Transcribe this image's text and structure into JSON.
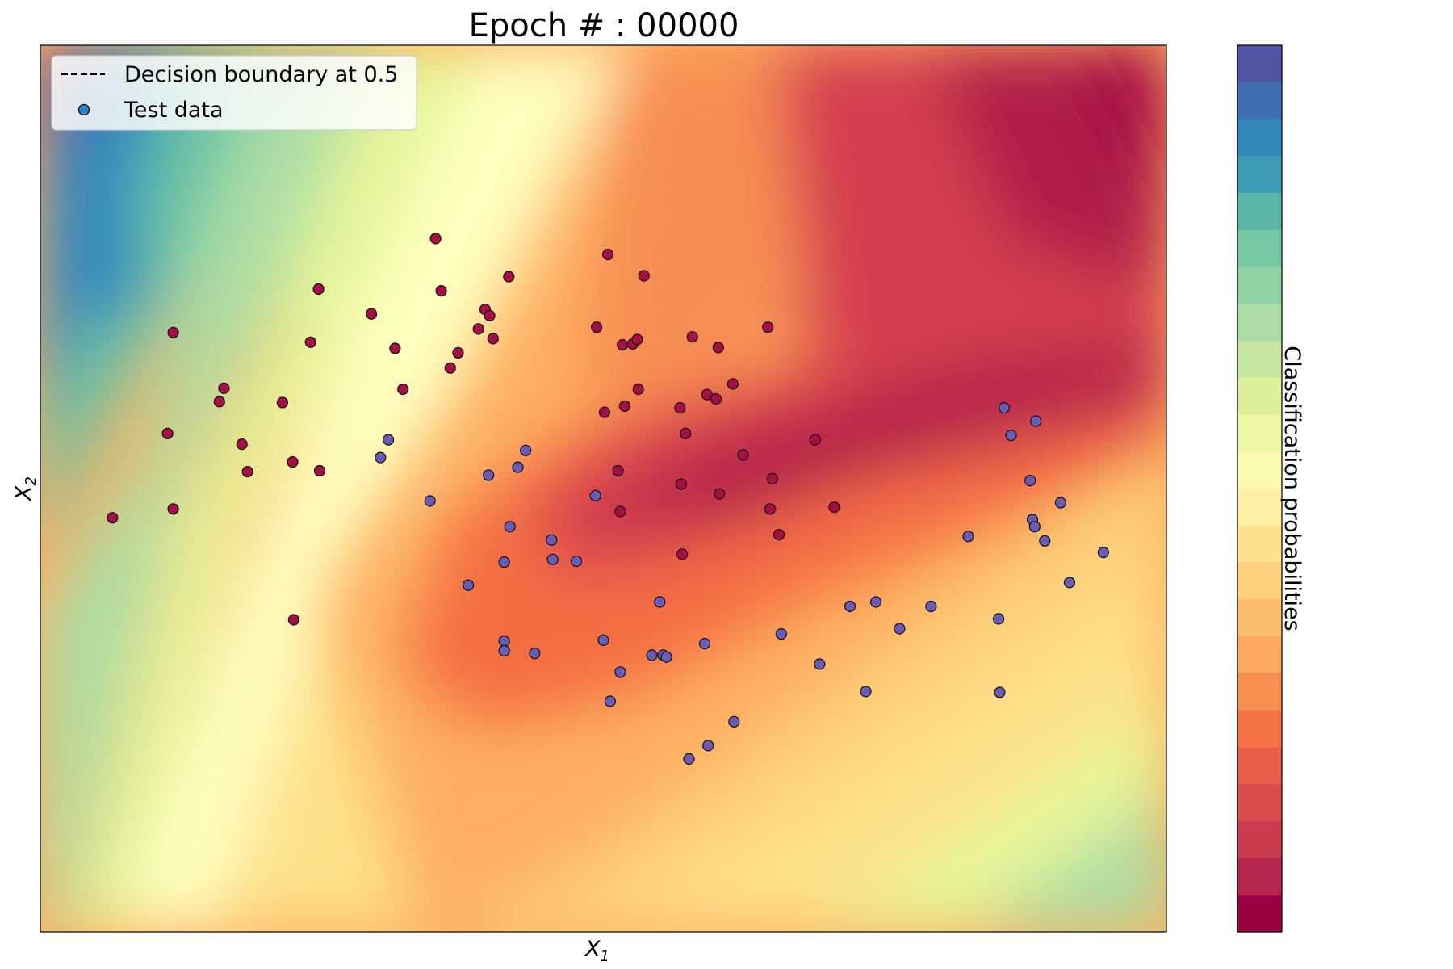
{
  "chart_data": {
    "type": "scatter",
    "title": "Epoch # : 00000",
    "xlabel": {
      "base": "X",
      "sub": "1"
    },
    "ylabel": {
      "base": "X",
      "sub": "2"
    },
    "xlim": [
      0,
      1
    ],
    "ylim": [
      0,
      1
    ],
    "xticks": [],
    "yticks": [],
    "grid": false,
    "legend": {
      "placement": "top-left",
      "entries": [
        {
          "label": "Decision boundary at 0.5",
          "marker": "dashed-line",
          "color": "#000000"
        },
        {
          "label": "Test data",
          "marker": "circle",
          "color": "#2e86c1"
        }
      ]
    },
    "colorbar": {
      "label": "Classification probabilities",
      "colors_top_to_bottom": [
        "#5153a3",
        "#3f6fb3",
        "#3288bd",
        "#3f9bb3",
        "#5bb6a9",
        "#74c9a4",
        "#8fd2a4",
        "#aadca3",
        "#c6e79f",
        "#dcf099",
        "#eef7a3",
        "#fbf8b0",
        "#feefa4",
        "#fee18f",
        "#fed07e",
        "#fdbc6d",
        "#fca85e",
        "#f98e52",
        "#f47245",
        "#eb5c47",
        "#db4b4d",
        "#cc3a4f",
        "#b7264c",
        "#9e0142"
      ]
    },
    "contour": {
      "cmap": "Spectral",
      "description_colors": {
        "low": "#5e4fa2",
        "mid": "#ffffbf",
        "high": "#9e0142"
      }
    },
    "series": [
      {
        "class": "red",
        "color": "#a50f45",
        "points": [
          [
            0.064,
            0.467
          ],
          [
            0.118,
            0.477
          ],
          [
            0.118,
            0.676
          ],
          [
            0.113,
            0.562
          ],
          [
            0.159,
            0.598
          ],
          [
            0.163,
            0.613
          ],
          [
            0.179,
            0.55
          ],
          [
            0.184,
            0.519
          ],
          [
            0.215,
            0.597
          ],
          [
            0.225,
            0.352
          ],
          [
            0.224,
            0.53
          ],
          [
            0.24,
            0.665
          ],
          [
            0.247,
            0.725
          ],
          [
            0.248,
            0.52
          ],
          [
            0.294,
            0.697
          ],
          [
            0.315,
            0.658
          ],
          [
            0.322,
            0.612
          ],
          [
            0.351,
            0.782
          ],
          [
            0.356,
            0.723
          ],
          [
            0.364,
            0.636
          ],
          [
            0.371,
            0.653
          ],
          [
            0.395,
            0.702
          ],
          [
            0.389,
            0.68
          ],
          [
            0.399,
            0.695
          ],
          [
            0.402,
            0.669
          ],
          [
            0.416,
            0.739
          ],
          [
            0.494,
            0.682
          ],
          [
            0.501,
            0.586
          ],
          [
            0.504,
            0.764
          ],
          [
            0.513,
            0.52
          ],
          [
            0.517,
            0.662
          ],
          [
            0.515,
            0.474
          ],
          [
            0.519,
            0.593
          ],
          [
            0.526,
            0.663
          ],
          [
            0.53,
            0.668
          ],
          [
            0.531,
            0.612
          ],
          [
            0.536,
            0.74
          ],
          [
            0.568,
            0.591
          ],
          [
            0.569,
            0.505
          ],
          [
            0.57,
            0.426
          ],
          [
            0.573,
            0.562
          ],
          [
            0.579,
            0.671
          ],
          [
            0.592,
            0.606
          ],
          [
            0.6,
            0.601
          ],
          [
            0.602,
            0.659
          ],
          [
            0.603,
            0.494
          ],
          [
            0.615,
            0.618
          ],
          [
            0.624,
            0.538
          ],
          [
            0.646,
            0.682
          ],
          [
            0.648,
            0.477
          ],
          [
            0.65,
            0.511
          ],
          [
            0.656,
            0.448
          ],
          [
            0.688,
            0.555
          ],
          [
            0.705,
            0.479
          ]
        ]
      },
      {
        "class": "blue",
        "color": "#6a5cb5",
        "points": [
          [
            0.302,
            0.535
          ],
          [
            0.309,
            0.555
          ],
          [
            0.346,
            0.486
          ],
          [
            0.38,
            0.391
          ],
          [
            0.398,
            0.515
          ],
          [
            0.412,
            0.417
          ],
          [
            0.412,
            0.328
          ],
          [
            0.412,
            0.317
          ],
          [
            0.417,
            0.457
          ],
          [
            0.424,
            0.524
          ],
          [
            0.431,
            0.543
          ],
          [
            0.439,
            0.314
          ],
          [
            0.454,
            0.442
          ],
          [
            0.455,
            0.42
          ],
          [
            0.476,
            0.418
          ],
          [
            0.493,
            0.492
          ],
          [
            0.5,
            0.329
          ],
          [
            0.506,
            0.26
          ],
          [
            0.515,
            0.293
          ],
          [
            0.543,
            0.312
          ],
          [
            0.55,
            0.372
          ],
          [
            0.553,
            0.312
          ],
          [
            0.556,
            0.31
          ],
          [
            0.576,
            0.195
          ],
          [
            0.59,
            0.325
          ],
          [
            0.593,
            0.21
          ],
          [
            0.616,
            0.237
          ],
          [
            0.658,
            0.336
          ],
          [
            0.692,
            0.302
          ],
          [
            0.719,
            0.367
          ],
          [
            0.733,
            0.271
          ],
          [
            0.742,
            0.372
          ],
          [
            0.763,
            0.342
          ],
          [
            0.791,
            0.367
          ],
          [
            0.824,
            0.446
          ],
          [
            0.851,
            0.353
          ],
          [
            0.852,
            0.27
          ],
          [
            0.856,
            0.591
          ],
          [
            0.862,
            0.56
          ],
          [
            0.879,
            0.509
          ],
          [
            0.881,
            0.465
          ],
          [
            0.883,
            0.457
          ],
          [
            0.884,
            0.576
          ],
          [
            0.892,
            0.441
          ],
          [
            0.906,
            0.484
          ],
          [
            0.914,
            0.394
          ],
          [
            0.944,
            0.428
          ]
        ]
      }
    ]
  }
}
